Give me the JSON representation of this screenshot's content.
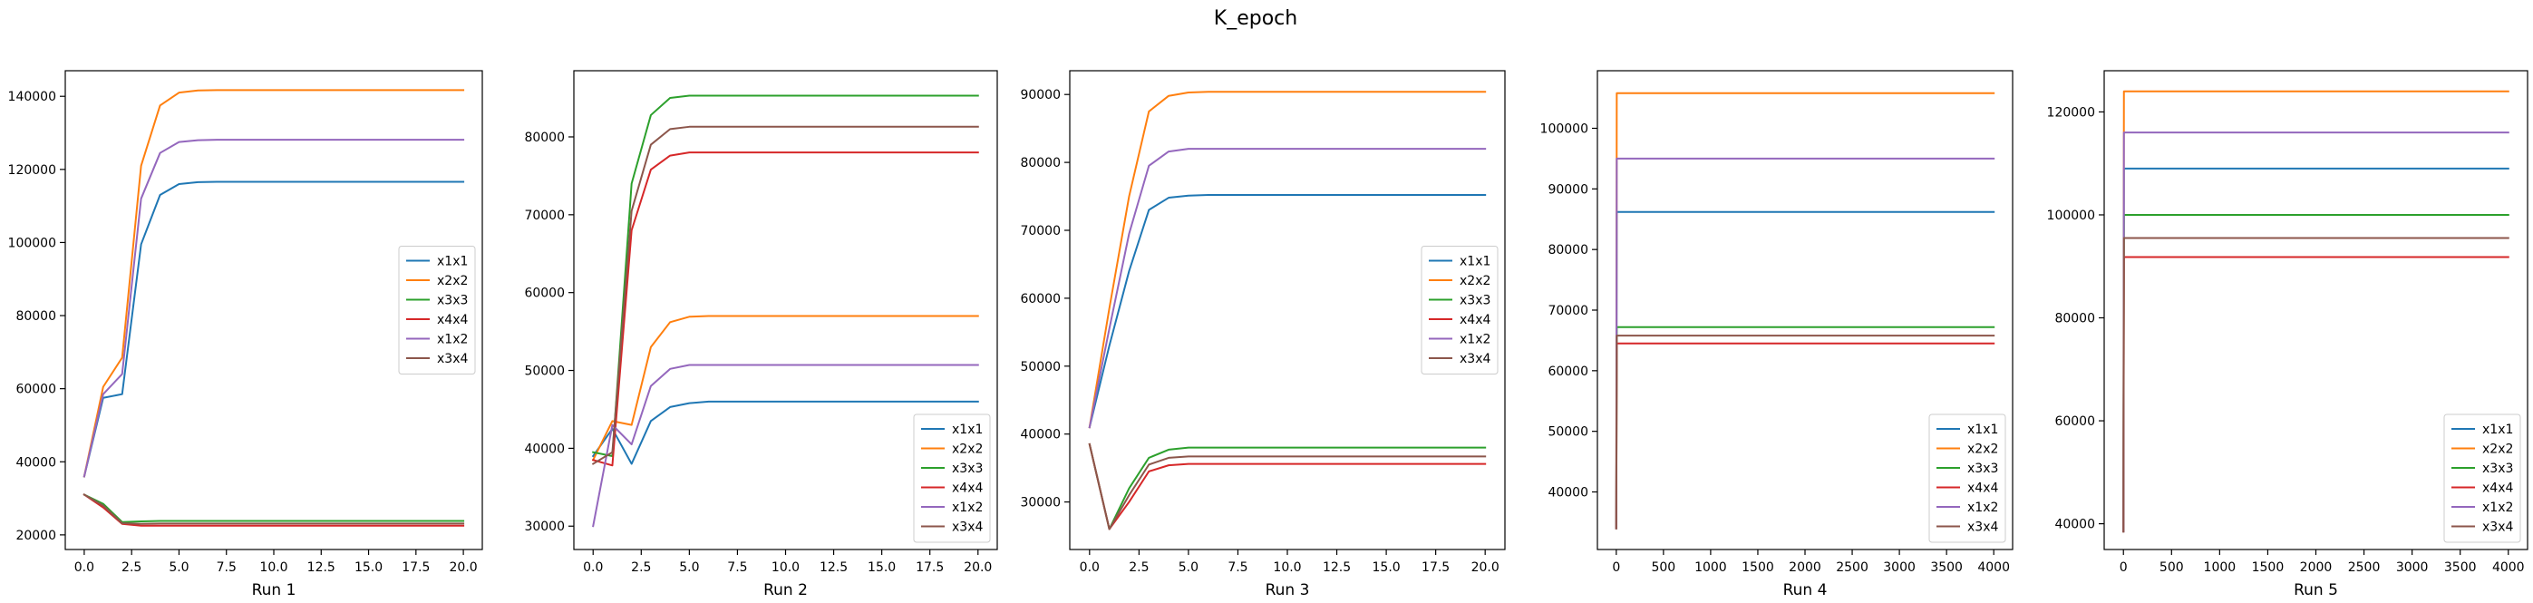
{
  "figure": {
    "title": "K_epoch"
  },
  "colors": {
    "x1x1": "#1f77b4",
    "x2x2": "#ff7f0e",
    "x3x3": "#2ca02c",
    "x4x4": "#d62728",
    "x1x2": "#9467bd",
    "x3x4": "#8c564b"
  },
  "chart_data": [
    {
      "type": "line",
      "xlabel": "Run 1",
      "legend_position": "center-right",
      "xlim": [
        -1,
        21
      ],
      "ylim": [
        16000,
        147000
      ],
      "xticks": [
        0,
        2.5,
        5,
        7.5,
        10,
        12.5,
        15,
        17.5,
        20
      ],
      "xtick_labels": [
        "0.0",
        "2.5",
        "5.0",
        "7.5",
        "10.0",
        "12.5",
        "15.0",
        "17.5",
        "20.0"
      ],
      "yticks": [
        20000,
        40000,
        60000,
        80000,
        100000,
        120000,
        140000
      ],
      "x": [
        0,
        1,
        2,
        3,
        4,
        5,
        6,
        7,
        8,
        9,
        10,
        11,
        12,
        13,
        14,
        15,
        16,
        17,
        18,
        19,
        20
      ],
      "series": [
        {
          "name": "x1x1",
          "values": [
            36000,
            57500,
            58500,
            99500,
            113000,
            116000,
            116500,
            116600,
            116600,
            116600,
            116600,
            116600,
            116600,
            116600,
            116600,
            116600,
            116600,
            116600,
            116600,
            116600,
            116600
          ]
        },
        {
          "name": "x2x2",
          "values": [
            36000,
            60500,
            68500,
            121000,
            137500,
            141000,
            141600,
            141700,
            141700,
            141700,
            141700,
            141700,
            141700,
            141700,
            141700,
            141700,
            141700,
            141700,
            141700,
            141700,
            141700
          ]
        },
        {
          "name": "x3x3",
          "values": [
            31000,
            28500,
            23500,
            23700,
            23800,
            23800,
            23800,
            23800,
            23800,
            23800,
            23800,
            23800,
            23800,
            23800,
            23800,
            23800,
            23800,
            23800,
            23800,
            23800,
            23800
          ]
        },
        {
          "name": "x4x4",
          "values": [
            31000,
            27500,
            23000,
            22500,
            22500,
            22500,
            22500,
            22500,
            22500,
            22500,
            22500,
            22500,
            22500,
            22500,
            22500,
            22500,
            22500,
            22500,
            22500,
            22500,
            22500
          ]
        },
        {
          "name": "x1x2",
          "values": [
            36000,
            58500,
            64000,
            112000,
            124500,
            127500,
            128000,
            128100,
            128100,
            128100,
            128100,
            128100,
            128100,
            128100,
            128100,
            128100,
            128100,
            128100,
            128100,
            128100,
            128100
          ]
        },
        {
          "name": "x3x4",
          "values": [
            31000,
            28000,
            23200,
            23000,
            23100,
            23100,
            23100,
            23100,
            23100,
            23100,
            23100,
            23100,
            23100,
            23100,
            23100,
            23100,
            23100,
            23100,
            23100,
            23100,
            23100
          ]
        }
      ]
    },
    {
      "type": "line",
      "xlabel": "Run 2",
      "legend_position": "lower-right",
      "xlim": [
        -1,
        21
      ],
      "ylim": [
        27000,
        88500
      ],
      "xticks": [
        0,
        2.5,
        5,
        7.5,
        10,
        12.5,
        15,
        17.5,
        20
      ],
      "xtick_labels": [
        "0.0",
        "2.5",
        "5.0",
        "7.5",
        "10.0",
        "12.5",
        "15.0",
        "17.5",
        "20.0"
      ],
      "yticks": [
        30000,
        40000,
        50000,
        60000,
        70000,
        80000
      ],
      "x": [
        0,
        1,
        2,
        3,
        4,
        5,
        6,
        7,
        8,
        9,
        10,
        11,
        12,
        13,
        14,
        15,
        16,
        17,
        18,
        19,
        20
      ],
      "series": [
        {
          "name": "x1x1",
          "values": [
            39000,
            42500,
            38000,
            43500,
            45300,
            45800,
            46000,
            46000,
            46000,
            46000,
            46000,
            46000,
            46000,
            46000,
            46000,
            46000,
            46000,
            46000,
            46000,
            46000,
            46000
          ]
        },
        {
          "name": "x2x2",
          "values": [
            38500,
            43500,
            43000,
            53000,
            56200,
            56900,
            57000,
            57000,
            57000,
            57000,
            57000,
            57000,
            57000,
            57000,
            57000,
            57000,
            57000,
            57000,
            57000,
            57000,
            57000
          ]
        },
        {
          "name": "x3x3",
          "values": [
            39500,
            39000,
            74000,
            82800,
            85000,
            85300,
            85300,
            85300,
            85300,
            85300,
            85300,
            85300,
            85300,
            85300,
            85300,
            85300,
            85300,
            85300,
            85300,
            85300,
            85300
          ]
        },
        {
          "name": "x4x4",
          "values": [
            38500,
            37800,
            68000,
            75800,
            77600,
            78000,
            78000,
            78000,
            78000,
            78000,
            78000,
            78000,
            78000,
            78000,
            78000,
            78000,
            78000,
            78000,
            78000,
            78000,
            78000
          ]
        },
        {
          "name": "x1x2",
          "values": [
            30000,
            43000,
            40500,
            48000,
            50200,
            50700,
            50700,
            50700,
            50700,
            50700,
            50700,
            50700,
            50700,
            50700,
            50700,
            50700,
            50700,
            50700,
            50700,
            50700,
            50700
          ]
        },
        {
          "name": "x3x4",
          "values": [
            38000,
            39500,
            70500,
            79000,
            81000,
            81300,
            81300,
            81300,
            81300,
            81300,
            81300,
            81300,
            81300,
            81300,
            81300,
            81300,
            81300,
            81300,
            81300,
            81300,
            81300
          ]
        }
      ]
    },
    {
      "type": "line",
      "xlabel": "Run 3",
      "legend_position": "center-right",
      "xlim": [
        -1,
        21
      ],
      "ylim": [
        23000,
        93500
      ],
      "xticks": [
        0,
        2.5,
        5,
        7.5,
        10,
        12.5,
        15,
        17.5,
        20
      ],
      "xtick_labels": [
        "0.0",
        "2.5",
        "5.0",
        "7.5",
        "10.0",
        "12.5",
        "15.0",
        "17.5",
        "20.0"
      ],
      "yticks": [
        30000,
        40000,
        50000,
        60000,
        70000,
        80000,
        90000
      ],
      "x": [
        0,
        1,
        2,
        3,
        4,
        5,
        6,
        7,
        8,
        9,
        10,
        11,
        12,
        13,
        14,
        15,
        16,
        17,
        18,
        19,
        20
      ],
      "series": [
        {
          "name": "x1x1",
          "values": [
            41000,
            53000,
            64000,
            73000,
            74800,
            75100,
            75200,
            75200,
            75200,
            75200,
            75200,
            75200,
            75200,
            75200,
            75200,
            75200,
            75200,
            75200,
            75200,
            75200,
            75200
          ]
        },
        {
          "name": "x2x2",
          "values": [
            41000,
            58500,
            75000,
            87500,
            89800,
            90300,
            90400,
            90400,
            90400,
            90400,
            90400,
            90400,
            90400,
            90400,
            90400,
            90400,
            90400,
            90400,
            90400,
            90400,
            90400
          ]
        },
        {
          "name": "x3x3",
          "values": [
            38500,
            26000,
            32000,
            36500,
            37700,
            38000,
            38000,
            38000,
            38000,
            38000,
            38000,
            38000,
            38000,
            38000,
            38000,
            38000,
            38000,
            38000,
            38000,
            38000,
            38000
          ]
        },
        {
          "name": "x4x4",
          "values": [
            38500,
            26000,
            30000,
            34500,
            35400,
            35600,
            35600,
            35600,
            35600,
            35600,
            35600,
            35600,
            35600,
            35600,
            35600,
            35600,
            35600,
            35600,
            35600,
            35600,
            35600
          ]
        },
        {
          "name": "x1x2",
          "values": [
            41000,
            55500,
            69500,
            79500,
            81600,
            82000,
            82000,
            82000,
            82000,
            82000,
            82000,
            82000,
            82000,
            82000,
            82000,
            82000,
            82000,
            82000,
            82000,
            82000,
            82000
          ]
        },
        {
          "name": "x3x4",
          "values": [
            38500,
            26000,
            31000,
            35500,
            36500,
            36700,
            36700,
            36700,
            36700,
            36700,
            36700,
            36700,
            36700,
            36700,
            36700,
            36700,
            36700,
            36700,
            36700,
            36700,
            36700
          ]
        }
      ]
    },
    {
      "type": "line",
      "xlabel": "Run 4",
      "legend_position": "lower-right",
      "xlim": [
        -200,
        4200
      ],
      "ylim": [
        30500,
        109500
      ],
      "xticks": [
        0,
        500,
        1000,
        1500,
        2000,
        2500,
        3000,
        3500,
        4000
      ],
      "xtick_labels": [
        "0",
        "500",
        "1000",
        "1500",
        "2000",
        "2500",
        "3000",
        "3500",
        "4000"
      ],
      "yticks": [
        40000,
        50000,
        60000,
        70000,
        80000,
        90000,
        100000
      ],
      "x": [
        0,
        5,
        4000
      ],
      "series": [
        {
          "name": "x1x1",
          "values": [
            34000,
            86200,
            86200
          ]
        },
        {
          "name": "x2x2",
          "values": [
            34000,
            105800,
            105800
          ]
        },
        {
          "name": "x3x3",
          "values": [
            34000,
            67200,
            67200
          ]
        },
        {
          "name": "x4x4",
          "values": [
            34000,
            64500,
            64500
          ]
        },
        {
          "name": "x1x2",
          "values": [
            34000,
            95000,
            95000
          ]
        },
        {
          "name": "x3x4",
          "values": [
            34000,
            65800,
            65800
          ]
        }
      ]
    },
    {
      "type": "line",
      "xlabel": "Run 5",
      "legend_position": "lower-right",
      "xlim": [
        -200,
        4200
      ],
      "ylim": [
        35000,
        128000
      ],
      "xticks": [
        0,
        500,
        1000,
        1500,
        2000,
        2500,
        3000,
        3500,
        4000
      ],
      "xtick_labels": [
        "0",
        "500",
        "1000",
        "1500",
        "2000",
        "2500",
        "3000",
        "3500",
        "4000"
      ],
      "yticks": [
        40000,
        60000,
        80000,
        100000,
        120000
      ],
      "x": [
        0,
        5,
        4000
      ],
      "series": [
        {
          "name": "x1x1",
          "values": [
            38500,
            109000,
            109000
          ]
        },
        {
          "name": "x2x2",
          "values": [
            38500,
            124000,
            124000
          ]
        },
        {
          "name": "x3x3",
          "values": [
            38500,
            100000,
            100000
          ]
        },
        {
          "name": "x4x4",
          "values": [
            38500,
            91800,
            91800
          ]
        },
        {
          "name": "x1x2",
          "values": [
            38500,
            116000,
            116000
          ]
        },
        {
          "name": "x3x4",
          "values": [
            38500,
            95500,
            95500
          ]
        }
      ]
    }
  ]
}
